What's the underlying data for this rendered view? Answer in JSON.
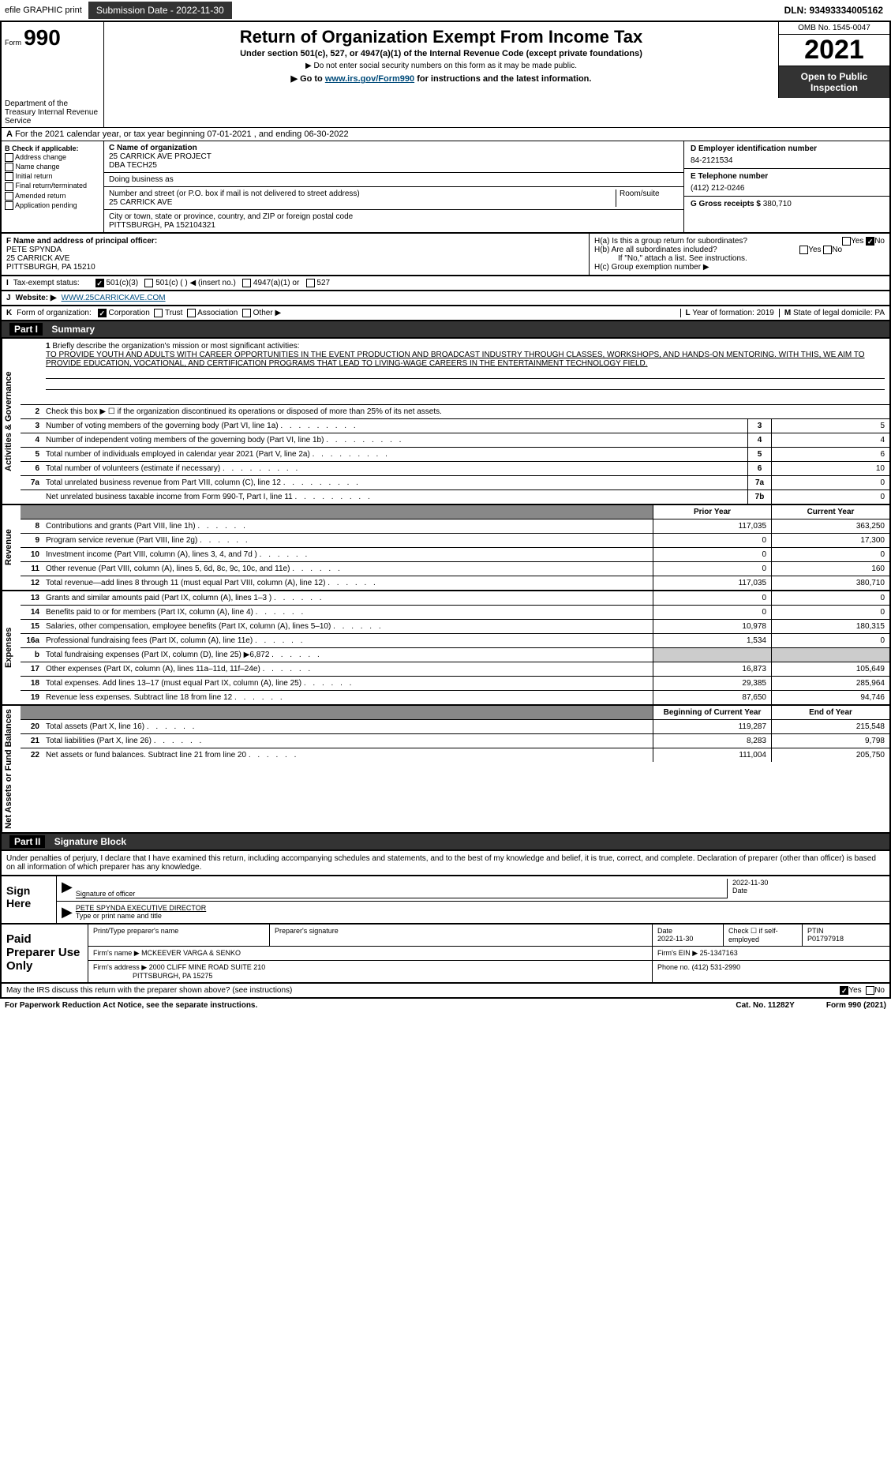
{
  "topbar": {
    "efile": "efile GRAPHIC print",
    "submission_btn": "Submission Date - 2022-11-30",
    "dln": "DLN: 93493334005162"
  },
  "header": {
    "form_prefix": "Form",
    "form_num": "990",
    "title": "Return of Organization Exempt From Income Tax",
    "subtitle": "Under section 501(c), 527, or 4947(a)(1) of the Internal Revenue Code (except private foundations)",
    "note1": "▶ Do not enter social security numbers on this form as it may be made public.",
    "note2_pre": "▶ Go to ",
    "note2_link": "www.irs.gov/Form990",
    "note2_post": " for instructions and the latest information.",
    "omb": "OMB No. 1545-0047",
    "year": "2021",
    "open": "Open to Public Inspection",
    "dept": "Department of the Treasury Internal Revenue Service"
  },
  "period": {
    "a_line": "For the 2021 calendar year, or tax year beginning 07-01-2021    , and ending 06-30-2022"
  },
  "blockB": {
    "label": "B Check if applicable:",
    "addr": "Address change",
    "name": "Name change",
    "init": "Initial return",
    "final": "Final return/terminated",
    "amend": "Amended return",
    "app": "Application pending"
  },
  "blockC": {
    "name_lbl": "C Name of organization",
    "name": "25 CARRICK AVE PROJECT",
    "dba": "DBA TECH25",
    "dba_lbl": "Doing business as",
    "addr_lbl": "Number and street (or P.O. box if mail is not delivered to street address)",
    "room_lbl": "Room/suite",
    "addr": "25 CARRICK AVE",
    "city_lbl": "City or town, state or province, country, and ZIP or foreign postal code",
    "city": "PITTSBURGH, PA  152104321"
  },
  "blockD": {
    "lbl": "D Employer identification number",
    "val": "84-2121534"
  },
  "blockE": {
    "lbl": "E Telephone number",
    "val": "(412) 212-0246"
  },
  "blockG": {
    "lbl": "G Gross receipts $",
    "val": "380,710"
  },
  "blockF": {
    "lbl": "F Name and address of principal officer:",
    "name": "PETE SPYNDA",
    "addr1": "25 CARRICK AVE",
    "addr2": "PITTSBURGH, PA  15210"
  },
  "blockH": {
    "a": "H(a)  Is this a group return for subordinates?",
    "b": "H(b)  Are all subordinates included?",
    "b_note": "If \"No,\" attach a list. See instructions.",
    "c": "H(c)  Group exemption number ▶",
    "yes": "Yes",
    "no": "No"
  },
  "blockI": {
    "lbl": "I",
    "text": "Tax-exempt status:",
    "opts": [
      "501(c)(3)",
      "501(c) (  ) ◀ (insert no.)",
      "4947(a)(1) or",
      "527"
    ]
  },
  "blockJ": {
    "lbl": "J",
    "text": "Website: ▶",
    "val": "WWW.25CARRICKAVE.COM"
  },
  "blockK": {
    "lbl": "K",
    "text": "Form of organization:",
    "opts": [
      "Corporation",
      "Trust",
      "Association",
      "Other ▶"
    ]
  },
  "blockL": {
    "lbl": "L",
    "text": "Year of formation:",
    "val": "2019"
  },
  "blockM": {
    "lbl": "M",
    "text": "State of legal domicile:",
    "val": "PA"
  },
  "part1": {
    "hdr": "Part I",
    "title": "Summary",
    "line1_lbl": "1",
    "line1_text": "Briefly describe the organization's mission or most significant activities:",
    "line1_desc": "TO PROVIDE YOUTH AND ADULTS WITH CAREER OPPORTUNITIES IN THE EVENT PRODUCTION AND BROADCAST INDUSTRY THROUGH CLASSES, WORKSHOPS, AND HANDS-ON MENTORING. WITH THIS, WE AIM TO PROVIDE EDUCATION, VOCATIONAL, AND CERTIFICATION PROGRAMS THAT LEAD TO LIVING-WAGE CAREERS IN THE ENTERTAINMENT TECHNOLOGY FIELD.",
    "line2": "Check this box ▶ ☐ if the organization discontinued its operations or disposed of more than 25% of its net assets.",
    "rows_ag": [
      {
        "n": "3",
        "t": "Number of voting members of the governing body (Part VI, line 1a)",
        "box": "3",
        "v": "5"
      },
      {
        "n": "4",
        "t": "Number of independent voting members of the governing body (Part VI, line 1b)",
        "box": "4",
        "v": "4"
      },
      {
        "n": "5",
        "t": "Total number of individuals employed in calendar year 2021 (Part V, line 2a)",
        "box": "5",
        "v": "6"
      },
      {
        "n": "6",
        "t": "Total number of volunteers (estimate if necessary)",
        "box": "6",
        "v": "10"
      },
      {
        "n": "7a",
        "t": "Total unrelated business revenue from Part VIII, column (C), line 12",
        "box": "7a",
        "v": "0"
      },
      {
        "n": "",
        "t": "Net unrelated business taxable income from Form 990-T, Part I, line 11",
        "box": "7b",
        "v": "0"
      }
    ],
    "py_hdr": "Prior Year",
    "cy_hdr": "Current Year",
    "rows_rev": [
      {
        "n": "8",
        "t": "Contributions and grants (Part VIII, line 1h)",
        "py": "117,035",
        "cy": "363,250"
      },
      {
        "n": "9",
        "t": "Program service revenue (Part VIII, line 2g)",
        "py": "0",
        "cy": "17,300"
      },
      {
        "n": "10",
        "t": "Investment income (Part VIII, column (A), lines 3, 4, and 7d )",
        "py": "0",
        "cy": "0"
      },
      {
        "n": "11",
        "t": "Other revenue (Part VIII, column (A), lines 5, 6d, 8c, 9c, 10c, and 11e)",
        "py": "0",
        "cy": "160"
      },
      {
        "n": "12",
        "t": "Total revenue—add lines 8 through 11 (must equal Part VIII, column (A), line 12)",
        "py": "117,035",
        "cy": "380,710"
      }
    ],
    "rows_exp": [
      {
        "n": "13",
        "t": "Grants and similar amounts paid (Part IX, column (A), lines 1–3 )",
        "py": "0",
        "cy": "0"
      },
      {
        "n": "14",
        "t": "Benefits paid to or for members (Part IX, column (A), line 4)",
        "py": "0",
        "cy": "0"
      },
      {
        "n": "15",
        "t": "Salaries, other compensation, employee benefits (Part IX, column (A), lines 5–10)",
        "py": "10,978",
        "cy": "180,315"
      },
      {
        "n": "16a",
        "t": "Professional fundraising fees (Part IX, column (A), line 11e)",
        "py": "1,534",
        "cy": "0"
      },
      {
        "n": "b",
        "t": "Total fundraising expenses (Part IX, column (D), line 25) ▶6,872",
        "py": "",
        "cy": "",
        "shade": true
      },
      {
        "n": "17",
        "t": "Other expenses (Part IX, column (A), lines 11a–11d, 11f–24e)",
        "py": "16,873",
        "cy": "105,649"
      },
      {
        "n": "18",
        "t": "Total expenses. Add lines 13–17 (must equal Part IX, column (A), line 25)",
        "py": "29,385",
        "cy": "285,964"
      },
      {
        "n": "19",
        "t": "Revenue less expenses. Subtract line 18 from line 12",
        "py": "87,650",
        "cy": "94,746"
      }
    ],
    "bcy_hdr": "Beginning of Current Year",
    "eoy_hdr": "End of Year",
    "rows_net": [
      {
        "n": "20",
        "t": "Total assets (Part X, line 16)",
        "py": "119,287",
        "cy": "215,548"
      },
      {
        "n": "21",
        "t": "Total liabilities (Part X, line 26)",
        "py": "8,283",
        "cy": "9,798"
      },
      {
        "n": "22",
        "t": "Net assets or fund balances. Subtract line 21 from line 20",
        "py": "111,004",
        "cy": "205,750"
      }
    ],
    "side_ag": "Activities & Governance",
    "side_rev": "Revenue",
    "side_exp": "Expenses",
    "side_net": "Net Assets or Fund Balances"
  },
  "part2": {
    "hdr": "Part II",
    "title": "Signature Block",
    "intro": "Under penalties of perjury, I declare that I have examined this return, including accompanying schedules and statements, and to the best of my knowledge and belief, it is true, correct, and complete. Declaration of preparer (other than officer) is based on all information of which preparer has any knowledge.",
    "sign_here": "Sign Here",
    "sig_officer": "Signature of officer",
    "sig_date": "Date",
    "sig_date_val": "2022-11-30",
    "sig_name": "PETE SPYNDA  EXECUTIVE DIRECTOR",
    "sig_name_lbl": "Type or print name and title",
    "paid": "Paid Preparer Use Only",
    "prep_name_lbl": "Print/Type preparer's name",
    "prep_sig_lbl": "Preparer's signature",
    "prep_date_lbl": "Date",
    "prep_date": "2022-11-30",
    "prep_self": "Check ☐ if self-employed",
    "ptin_lbl": "PTIN",
    "ptin": "P01797918",
    "firm_name_lbl": "Firm's name    ▶",
    "firm_name": "MCKEEVER VARGA & SENKO",
    "firm_ein_lbl": "Firm's EIN ▶",
    "firm_ein": "25-1347163",
    "firm_addr_lbl": "Firm's address ▶",
    "firm_addr1": "2000 CLIFF MINE ROAD SUITE 210",
    "firm_addr2": "PITTSBURGH, PA  15275",
    "phone_lbl": "Phone no.",
    "phone": "(412) 531-2990",
    "discuss": "May the IRS discuss this return with the preparer shown above? (see instructions)",
    "yes": "Yes",
    "no": "No"
  },
  "footer": {
    "pra": "For Paperwork Reduction Act Notice, see the separate instructions.",
    "cat": "Cat. No. 11282Y",
    "form": "Form 990 (2021)"
  }
}
